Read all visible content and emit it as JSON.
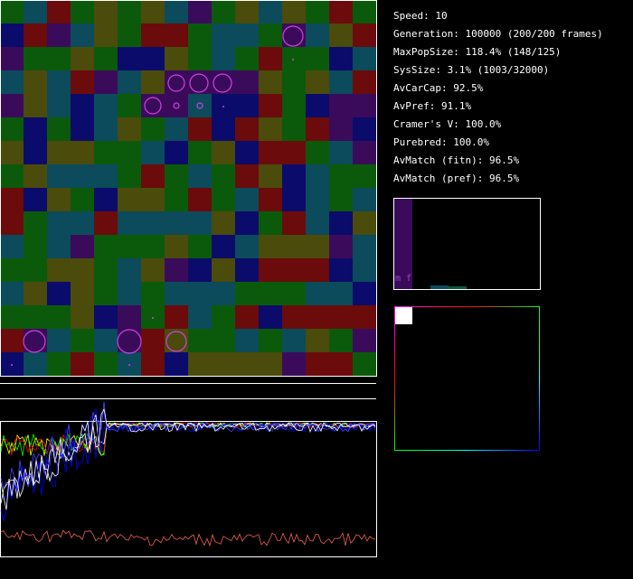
{
  "stats": [
    "Speed: 10",
    "Generation: 100000 (200/200 frames)",
    "MaxPopSize: 118.4% (148/125)",
    "SysSize: 3.1% (1003/32000)",
    "AvCarCap: 92.5%",
    "AvPref: 91.1%",
    "Cramer's V: 100.0%",
    "Purebred: 100.0%",
    "AvMatch (fitn): 96.5%",
    "AvMatch (pref): 96.5%"
  ],
  "histogram": {
    "label": "m f"
  }
}
